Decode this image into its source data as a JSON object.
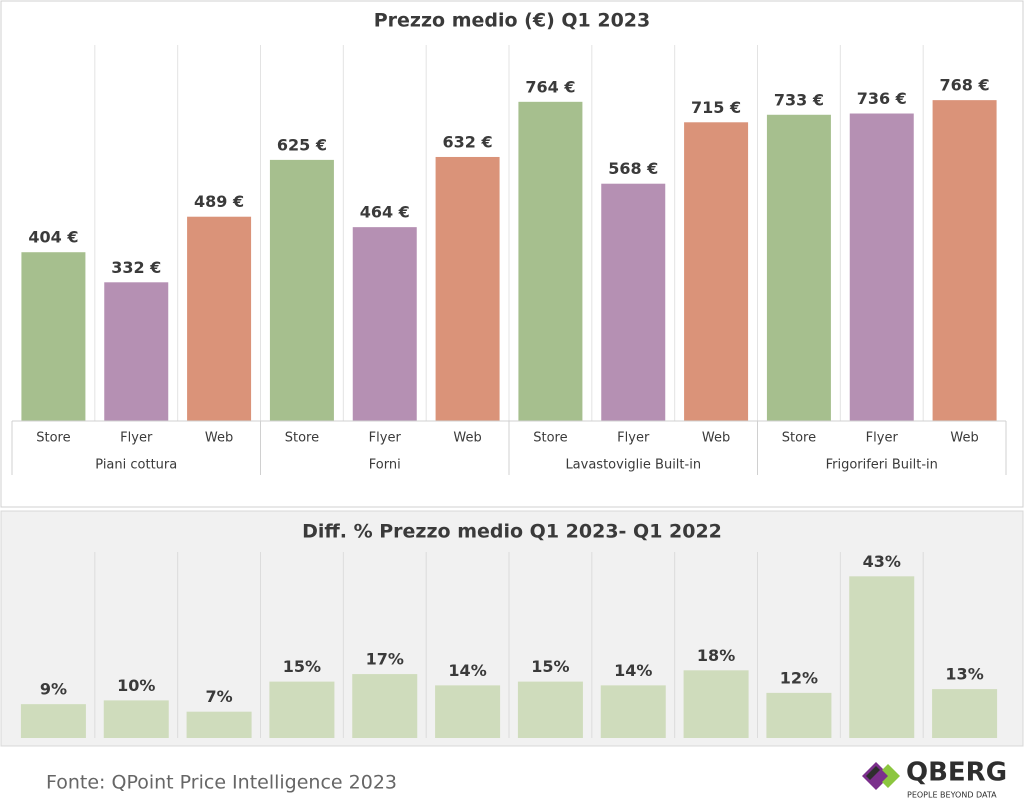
{
  "chart_data": [
    {
      "type": "bar",
      "title": "Prezzo medio (€) Q1 2023",
      "categories": [
        "Store",
        "Flyer",
        "Web",
        "Store",
        "Flyer",
        "Web",
        "Store",
        "Flyer",
        "Web",
        "Store",
        "Flyer",
        "Web"
      ],
      "group_labels": [
        "Piani cottura",
        "Forni",
        "Lavastoviglie Built-in",
        "Frigoriferi Built-in"
      ],
      "values": [
        404,
        332,
        489,
        625,
        464,
        632,
        764,
        568,
        715,
        733,
        736,
        768
      ],
      "value_labels": [
        "404 €",
        "332 €",
        "489 €",
        "625 €",
        "464 €",
        "632 €",
        "764 €",
        "568 €",
        "715 €",
        "733 €",
        "736 €",
        "768 €"
      ],
      "colors": [
        "#a6bf8e",
        "#b590b3",
        "#da9379",
        "#a6bf8e",
        "#b590b3",
        "#da9379",
        "#a6bf8e",
        "#b590b3",
        "#da9379",
        "#a6bf8e",
        "#b590b3",
        "#da9379"
      ],
      "ylim": [
        0,
        900
      ]
    },
    {
      "type": "bar",
      "title": "Diff. % Prezzo medio Q1 2023- Q1 2022",
      "values": [
        9,
        10,
        7,
        15,
        17,
        14,
        15,
        14,
        18,
        12,
        43,
        13
      ],
      "value_labels": [
        "9%",
        "10%",
        "7%",
        "15%",
        "17%",
        "14%",
        "15%",
        "14%",
        "18%",
        "12%",
        "43%",
        "13%"
      ],
      "color": "#cfdcbc",
      "ylim": [
        0,
        50
      ]
    }
  ],
  "source": "Fonte: QPoint Price Intelligence 2023",
  "logo": {
    "name": "QBERG",
    "tagline": "PEOPLE BEYOND DATA"
  }
}
